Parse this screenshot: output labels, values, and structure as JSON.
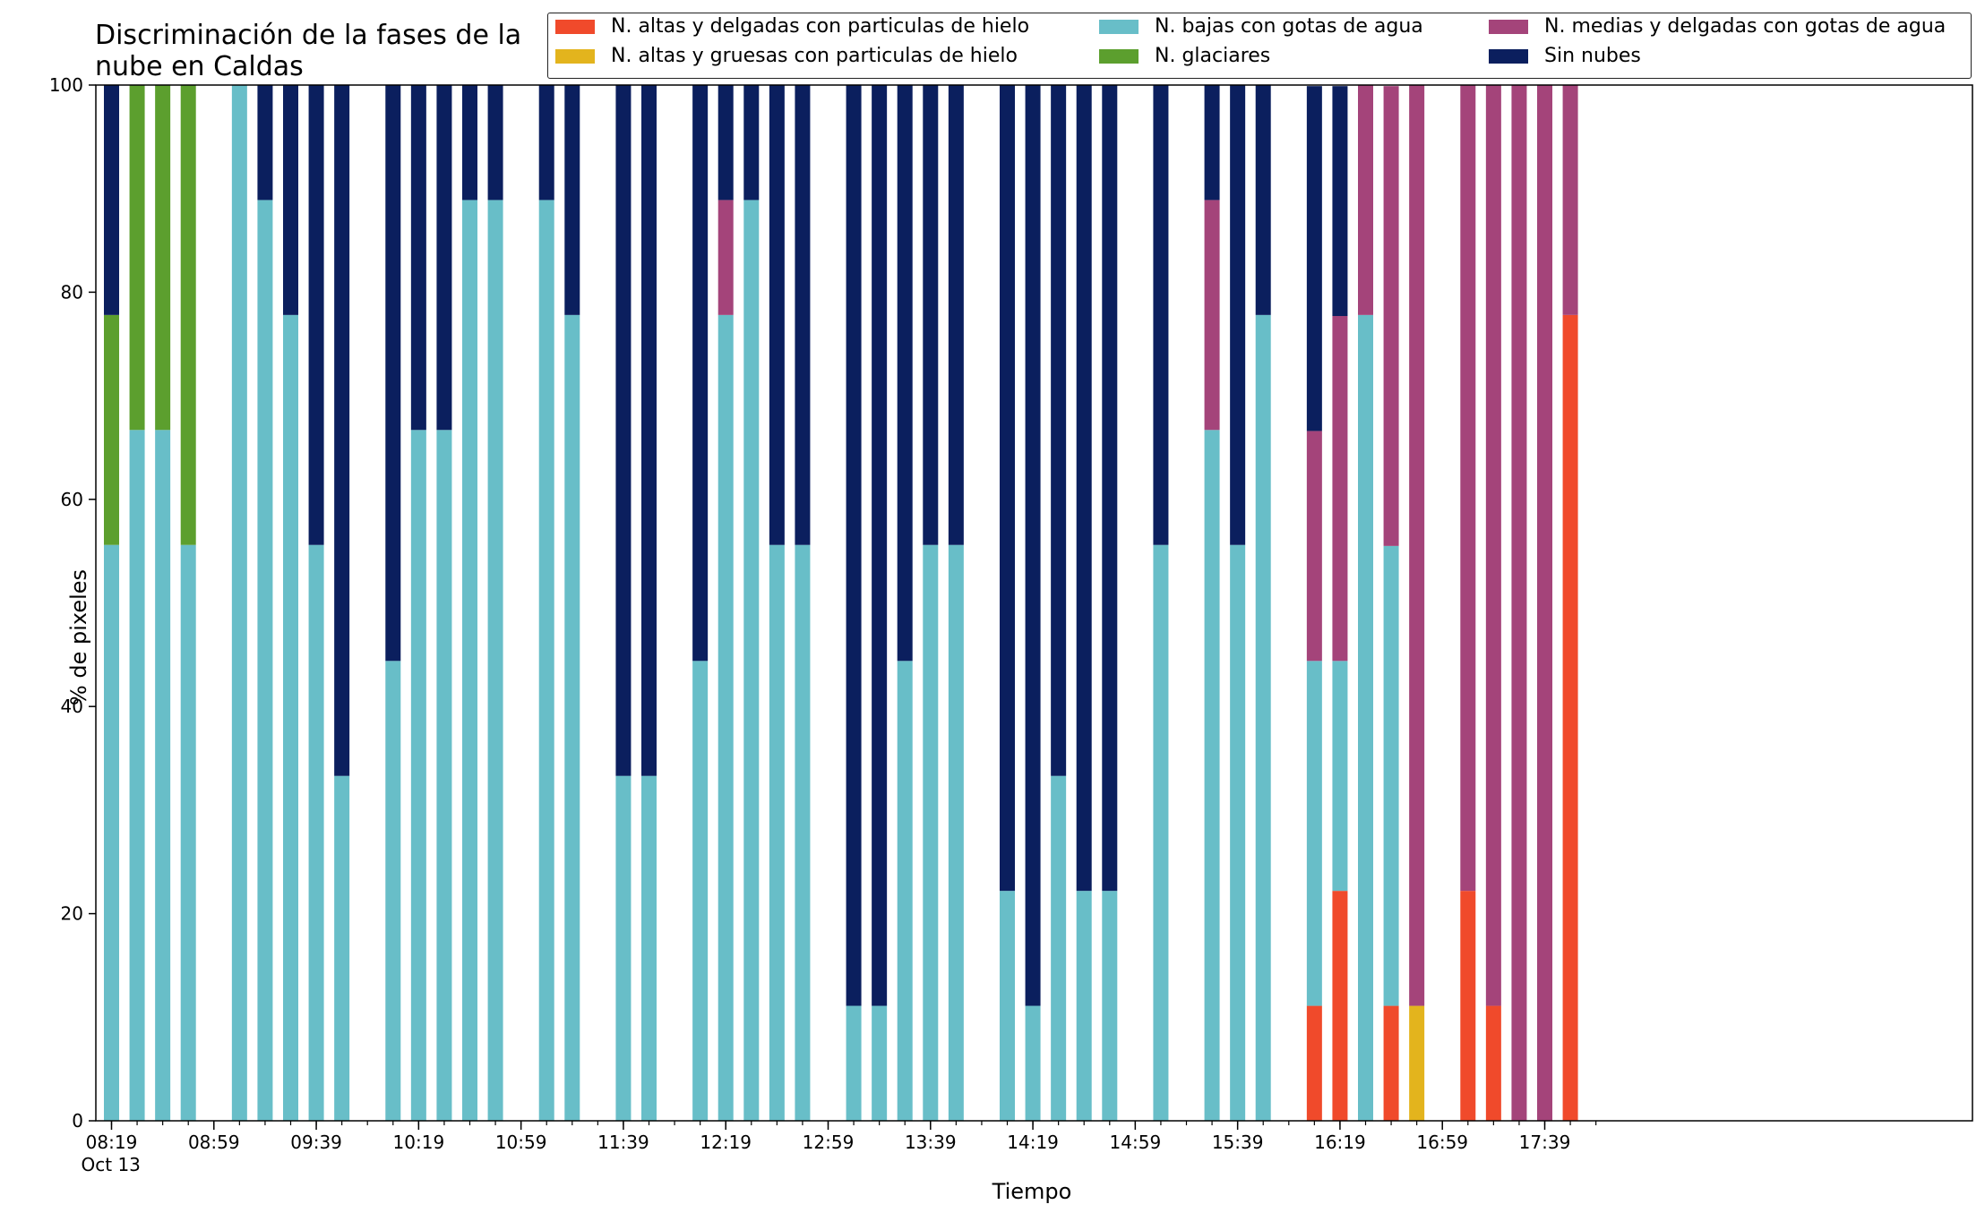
{
  "chart_data": {
    "type": "bar",
    "stacked": true,
    "title": "Discriminación de la fases de la\nnube en Caldas",
    "xlabel": "Tiempo",
    "ylabel": "% de pixeles",
    "ylim": [
      0,
      100
    ],
    "yticks": [
      0,
      20,
      40,
      60,
      80,
      100
    ],
    "grid": false,
    "legend_position": "top",
    "x_axis": {
      "start": "08:19",
      "end": "17:59",
      "step_minutes": 10
    },
    "xtick_labels": [
      {
        "time": "08:19",
        "label": "08:19",
        "sublabel": "Oct 13"
      },
      {
        "time": "08:59",
        "label": "08:59"
      },
      {
        "time": "09:39",
        "label": "09:39"
      },
      {
        "time": "10:19",
        "label": "10:19"
      },
      {
        "time": "10:59",
        "label": "10:59"
      },
      {
        "time": "11:39",
        "label": "11:39"
      },
      {
        "time": "12:19",
        "label": "12:19"
      },
      {
        "time": "12:59",
        "label": "12:59"
      },
      {
        "time": "13:39",
        "label": "13:39"
      },
      {
        "time": "14:19",
        "label": "14:19"
      },
      {
        "time": "14:59",
        "label": "14:59"
      },
      {
        "time": "15:39",
        "label": "15:39"
      },
      {
        "time": "16:19",
        "label": "16:19"
      },
      {
        "time": "16:59",
        "label": "16:59"
      },
      {
        "time": "17:39",
        "label": "17:39"
      }
    ],
    "series": [
      {
        "name": "N. altas y delgadas con particulas de hielo",
        "color": "#f04a2b",
        "legend_col": 0,
        "legend_row": 0
      },
      {
        "name": "N. altas y gruesas con particulas de hielo",
        "color": "#e3b41d",
        "legend_col": 0,
        "legend_row": 1
      },
      {
        "name": "N. bajas con gotas de agua",
        "color": "#68bec8",
        "legend_col": 1,
        "legend_row": 0
      },
      {
        "name": "N. glaciares",
        "color": "#5c9f2e",
        "legend_col": 1,
        "legend_row": 1
      },
      {
        "name": "N. medias y delgadas con gotas de agua",
        "color": "#a4447a",
        "legend_col": 2,
        "legend_row": 0
      },
      {
        "name": "Sin nubes",
        "color": "#0b1f5e",
        "legend_col": 2,
        "legend_row": 1
      }
    ],
    "stack_order": [
      "N. altas y delgadas con particulas de hielo",
      "N. altas y gruesas con particulas de hielo",
      "N. bajas con gotas de agua",
      "N. glaciares",
      "N. medias y delgadas con gotas de agua",
      "Sin nubes"
    ],
    "bars": [
      {
        "time": "08:19",
        "values": {
          "N. bajas con gotas de agua": 55.6,
          "N. glaciares": 22.2,
          "Sin nubes": 22.2
        }
      },
      {
        "time": "08:29",
        "values": {
          "N. bajas con gotas de agua": 66.7,
          "N. glaciares": 33.3
        }
      },
      {
        "time": "08:39",
        "values": {
          "N. bajas con gotas de agua": 66.7,
          "N. glaciares": 33.3
        }
      },
      {
        "time": "08:49",
        "values": {
          "N. bajas con gotas de agua": 55.6,
          "N. glaciares": 44.4
        }
      },
      {
        "time": "09:09",
        "values": {
          "N. bajas con gotas de agua": 100
        }
      },
      {
        "time": "09:19",
        "values": {
          "N. bajas con gotas de agua": 88.9,
          "Sin nubes": 11.1
        }
      },
      {
        "time": "09:29",
        "values": {
          "N. bajas con gotas de agua": 77.8,
          "Sin nubes": 22.2
        }
      },
      {
        "time": "09:39",
        "values": {
          "N. bajas con gotas de agua": 55.6,
          "Sin nubes": 44.4
        }
      },
      {
        "time": "09:49",
        "values": {
          "N. bajas con gotas de agua": 33.3,
          "Sin nubes": 66.7
        }
      },
      {
        "time": "10:09",
        "values": {
          "N. bajas con gotas de agua": 44.4,
          "Sin nubes": 55.6
        }
      },
      {
        "time": "10:19",
        "values": {
          "N. bajas con gotas de agua": 66.7,
          "Sin nubes": 33.3
        }
      },
      {
        "time": "10:29",
        "values": {
          "N. bajas con gotas de agua": 66.7,
          "Sin nubes": 33.3
        }
      },
      {
        "time": "10:39",
        "values": {
          "N. bajas con gotas de agua": 88.9,
          "Sin nubes": 11.1
        }
      },
      {
        "time": "10:49",
        "values": {
          "N. bajas con gotas de agua": 88.9,
          "Sin nubes": 11.1
        }
      },
      {
        "time": "11:09",
        "values": {
          "N. bajas con gotas de agua": 88.9,
          "Sin nubes": 11.1
        }
      },
      {
        "time": "11:19",
        "values": {
          "N. bajas con gotas de agua": 77.8,
          "Sin nubes": 22.2
        }
      },
      {
        "time": "11:39",
        "values": {
          "N. bajas con gotas de agua": 33.3,
          "Sin nubes": 66.7
        }
      },
      {
        "time": "11:49",
        "values": {
          "N. bajas con gotas de agua": 33.3,
          "Sin nubes": 66.7
        }
      },
      {
        "time": "12:09",
        "values": {
          "N. bajas con gotas de agua": 44.4,
          "Sin nubes": 55.6
        }
      },
      {
        "time": "12:19",
        "values": {
          "N. bajas con gotas de agua": 77.8,
          "N. medias y delgadas con gotas de agua": 11.1,
          "Sin nubes": 11.1
        }
      },
      {
        "time": "12:29",
        "values": {
          "N. bajas con gotas de agua": 88.9,
          "Sin nubes": 11.1
        }
      },
      {
        "time": "12:39",
        "values": {
          "N. bajas con gotas de agua": 55.6,
          "Sin nubes": 44.4
        }
      },
      {
        "time": "12:49",
        "values": {
          "N. bajas con gotas de agua": 55.6,
          "Sin nubes": 44.4
        }
      },
      {
        "time": "13:09",
        "values": {
          "N. bajas con gotas de agua": 11.1,
          "Sin nubes": 88.9
        }
      },
      {
        "time": "13:19",
        "values": {
          "N. bajas con gotas de agua": 11.1,
          "Sin nubes": 88.9
        }
      },
      {
        "time": "13:29",
        "values": {
          "N. bajas con gotas de agua": 44.4,
          "Sin nubes": 55.6
        }
      },
      {
        "time": "13:39",
        "values": {
          "N. bajas con gotas de agua": 55.6,
          "Sin nubes": 44.4
        }
      },
      {
        "time": "13:49",
        "values": {
          "N. bajas con gotas de agua": 55.6,
          "Sin nubes": 44.4
        }
      },
      {
        "time": "14:09",
        "values": {
          "N. bajas con gotas de agua": 22.2,
          "Sin nubes": 77.8
        }
      },
      {
        "time": "14:19",
        "values": {
          "N. bajas con gotas de agua": 11.1,
          "Sin nubes": 88.9
        }
      },
      {
        "time": "14:29",
        "values": {
          "N. bajas con gotas de agua": 33.3,
          "Sin nubes": 66.7
        }
      },
      {
        "time": "14:39",
        "values": {
          "N. bajas con gotas de agua": 22.2,
          "Sin nubes": 77.8
        }
      },
      {
        "time": "14:49",
        "values": {
          "N. bajas con gotas de agua": 22.2,
          "Sin nubes": 77.8
        }
      },
      {
        "time": "15:09",
        "values": {
          "N. bajas con gotas de agua": 55.6,
          "Sin nubes": 44.4
        }
      },
      {
        "time": "15:29",
        "values": {
          "N. bajas con gotas de agua": 66.7,
          "N. medias y delgadas con gotas de agua": 22.2,
          "Sin nubes": 11.1
        }
      },
      {
        "time": "15:39",
        "values": {
          "N. bajas con gotas de agua": 55.6,
          "Sin nubes": 44.4
        }
      },
      {
        "time": "15:49",
        "values": {
          "N. bajas con gotas de agua": 77.8,
          "Sin nubes": 22.2
        }
      },
      {
        "time": "16:09",
        "values": {
          "N. altas y delgadas con particulas de hielo": 11.1,
          "N. bajas con gotas de agua": 33.3,
          "N. medias y delgadas con gotas de agua": 22.2,
          "Sin nubes": 33.3
        }
      },
      {
        "time": "16:19",
        "values": {
          "N. altas y delgadas con particulas de hielo": 22.2,
          "N. bajas con gotas de agua": 22.2,
          "N. medias y delgadas con gotas de agua": 33.3,
          "Sin nubes": 22.2
        }
      },
      {
        "time": "16:29",
        "values": {
          "N. bajas con gotas de agua": 77.8,
          "N. medias y delgadas con gotas de agua": 22.2
        }
      },
      {
        "time": "16:39",
        "values": {
          "N. altas y delgadas con particulas de hielo": 11.1,
          "N. bajas con gotas de agua": 44.4,
          "N. medias y delgadas con gotas de agua": 44.4
        }
      },
      {
        "time": "16:49",
        "values": {
          "N. altas y gruesas con particulas de hielo": 11.1,
          "N. medias y delgadas con gotas de agua": 88.9
        }
      },
      {
        "time": "17:09",
        "values": {
          "N. altas y delgadas con particulas de hielo": 22.2,
          "N. medias y delgadas con gotas de agua": 77.8
        }
      },
      {
        "time": "17:19",
        "values": {
          "N. altas y delgadas con particulas de hielo": 11.1,
          "N. medias y delgadas con gotas de agua": 88.9
        }
      },
      {
        "time": "17:29",
        "values": {
          "N. medias y delgadas con gotas de agua": 100
        }
      },
      {
        "time": "17:39",
        "values": {
          "N. medias y delgadas con gotas de agua": 100
        }
      },
      {
        "time": "17:49",
        "values": {
          "N. altas y delgadas con particulas de hielo": 77.8,
          "N. medias y delgadas con gotas de agua": 22.2
        }
      }
    ]
  }
}
